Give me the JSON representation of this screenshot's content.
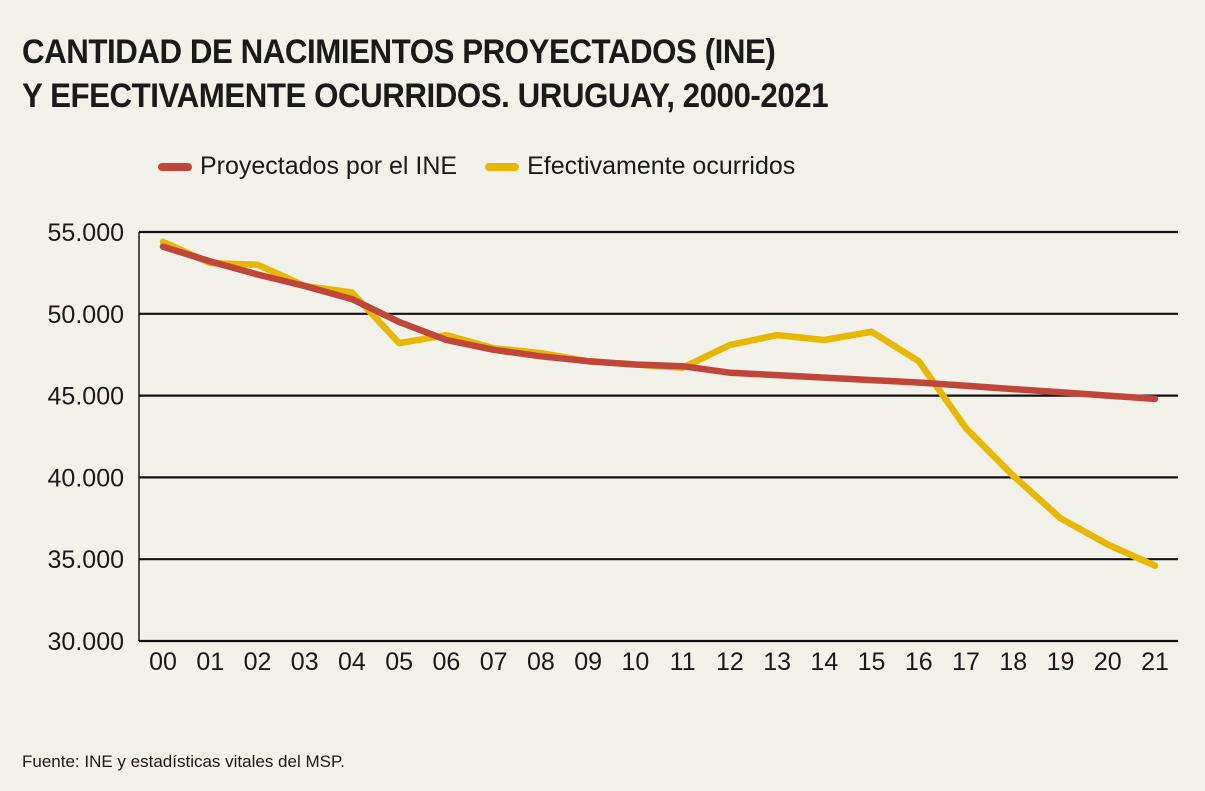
{
  "title_line1": "CANTIDAD DE NACIMIENTOS PROYECTADOS (INE)",
  "title_line2": "Y EFECTIVAMENTE OCURRIDOS. URUGUAY, 2000-2021",
  "source": "Fuente: INE y estadísticas vitales del MSP.",
  "chart_data": {
    "type": "line",
    "categories": [
      "00",
      "01",
      "02",
      "03",
      "04",
      "05",
      "06",
      "07",
      "08",
      "09",
      "10",
      "11",
      "12",
      "13",
      "14",
      "15",
      "16",
      "17",
      "18",
      "19",
      "20",
      "21"
    ],
    "y_tick_labels": [
      "55.000",
      "50.000",
      "45.000",
      "40.000",
      "35.000",
      "30.000"
    ],
    "y_ticks": [
      55000,
      50000,
      45000,
      40000,
      35000,
      30000
    ],
    "ylim": [
      30000,
      55000
    ],
    "grid": true,
    "legend_position": "top",
    "series": [
      {
        "name": "Proyectados por el INE",
        "color": "#c0463a",
        "values": [
          54100,
          53200,
          52400,
          51700,
          50900,
          49500,
          48400,
          47800,
          47400,
          47100,
          46900,
          46800,
          46400,
          46250,
          46100,
          45950,
          45800,
          45600,
          45400,
          45200,
          45000,
          44800
        ]
      },
      {
        "name": "Efectivamente ocurridos",
        "color": "#e8b800",
        "values": [
          54400,
          53100,
          53000,
          51700,
          51300,
          48200,
          48700,
          47900,
          47600,
          47100,
          46900,
          46700,
          48100,
          48700,
          48400,
          48900,
          47100,
          43000,
          40100,
          37500,
          35900,
          34600
        ]
      }
    ]
  }
}
